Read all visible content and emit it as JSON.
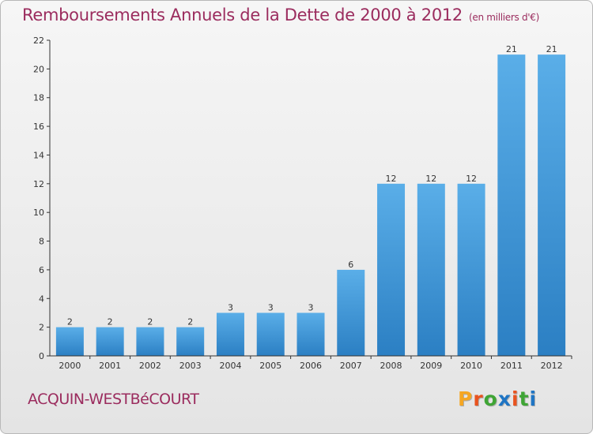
{
  "header": {
    "title": "Remboursements Annuels de la Dette de 2000 à 2012",
    "unit": "(en milliers d'€)"
  },
  "footer": {
    "commune": "ACQUIN-WESTBéCOURT",
    "logo": {
      "letters": [
        "P",
        "r",
        "o",
        "x",
        "i",
        "t",
        "i"
      ],
      "colors": [
        "#f5a623",
        "#e8531f",
        "#3fa535",
        "#1f75c4",
        "#e8531f",
        "#3fa535",
        "#1f75c4"
      ]
    }
  },
  "colors": {
    "bar_top": "#5aaee8",
    "bar_bottom": "#2b7fc3",
    "axis": "#333333",
    "text": "#333333"
  },
  "chart_data": {
    "type": "bar",
    "categories": [
      "2000",
      "2001",
      "2002",
      "2003",
      "2004",
      "2005",
      "2006",
      "2007",
      "2008",
      "2009",
      "2010",
      "2011",
      "2012"
    ],
    "values": [
      2,
      2,
      2,
      2,
      3,
      3,
      3,
      6,
      12,
      12,
      12,
      21,
      21
    ],
    "data_labels": [
      "2",
      "2",
      "2",
      "2",
      "3",
      "3",
      "3",
      "6",
      "12",
      "12",
      "12",
      "21",
      "21"
    ],
    "title": "Remboursements Annuels de la Dette de 2000 à 2012",
    "ylim": [
      0,
      22
    ],
    "yticks": [
      0,
      2,
      4,
      6,
      8,
      10,
      12,
      14,
      16,
      18,
      20,
      22
    ],
    "grid": false,
    "legend": "none"
  }
}
